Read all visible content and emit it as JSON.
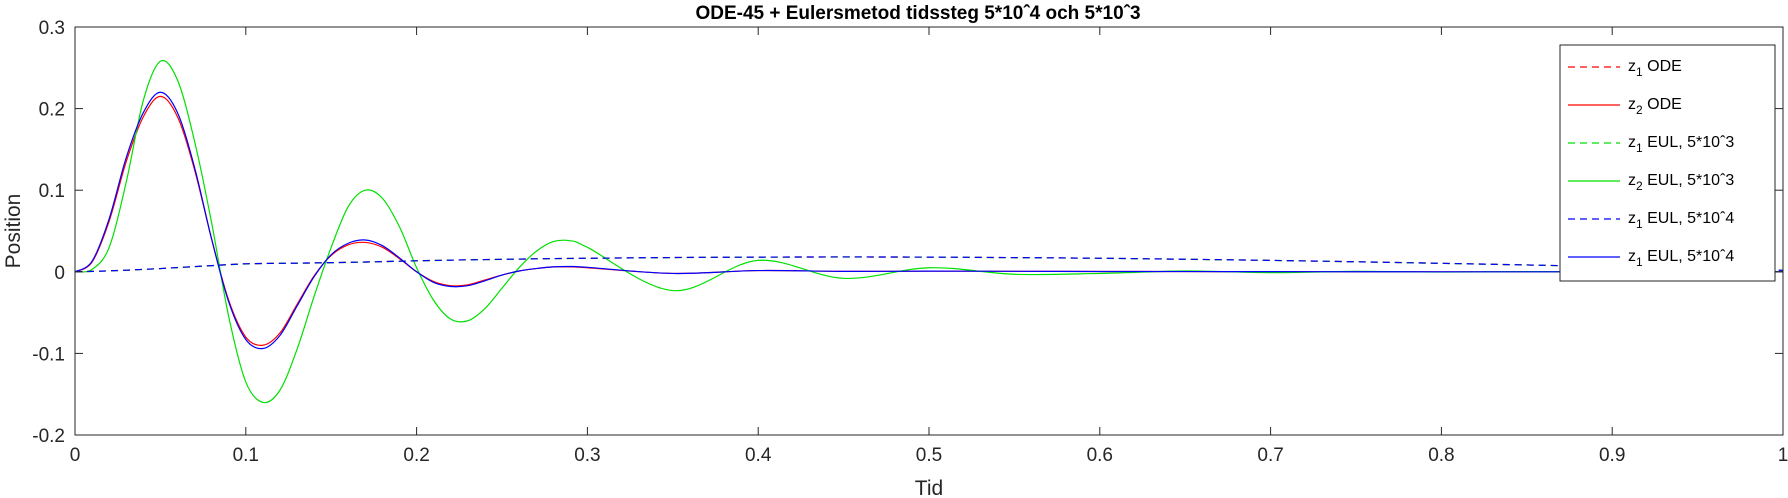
{
  "chart_data": {
    "type": "line",
    "title": "ODE-45 + Eulersmetod tidssteg 5*10ˆ4 och 5*10ˆ3",
    "xlabel": "Tid",
    "ylabel": "Position",
    "xlim": [
      0,
      1
    ],
    "ylim": [
      -0.2,
      0.3
    ],
    "xticks": [
      0,
      0.1,
      0.2,
      0.3,
      0.4,
      0.5,
      0.6,
      0.7,
      0.8,
      0.9,
      1
    ],
    "yticks": [
      -0.2,
      -0.1,
      0,
      0.1,
      0.2,
      0.3
    ],
    "xtick_labels": [
      "0",
      "0.1",
      "0.2",
      "0.3",
      "0.4",
      "0.5",
      "0.6",
      "0.7",
      "0.8",
      "0.9",
      "1"
    ],
    "ytick_labels": [
      "-0.2",
      "-0.1",
      "0",
      "0.1",
      "0.2",
      "0.3"
    ],
    "grid": false,
    "legend_position": "top-right",
    "x": [
      0,
      0.01,
      0.02,
      0.03,
      0.04,
      0.05,
      0.06,
      0.07,
      0.08,
      0.09,
      0.1,
      0.11,
      0.12,
      0.13,
      0.14,
      0.15,
      0.16,
      0.17,
      0.18,
      0.19,
      0.2,
      0.21,
      0.22,
      0.23,
      0.24,
      0.25,
      0.26,
      0.27,
      0.28,
      0.29,
      0.3,
      0.35,
      0.4,
      0.45,
      0.5,
      0.55,
      0.6,
      0.65,
      0.7,
      0.75,
      0.8,
      0.85,
      0.9,
      0.95,
      1
    ],
    "series": [
      {
        "name": "z",
        "sub": "1",
        "suffix": " ODE",
        "color": "#ff0000",
        "dash": true,
        "values": [
          0,
          0.0005,
          0.0012,
          0.002,
          0.003,
          0.004,
          0.0052,
          0.0064,
          0.0076,
          0.0088,
          0.0098,
          0.0102,
          0.0104,
          0.0106,
          0.0109,
          0.0112,
          0.0116,
          0.012,
          0.0125,
          0.013,
          0.0135,
          0.0139,
          0.0143,
          0.0147,
          0.015,
          0.0153,
          0.0156,
          0.0159,
          0.0162,
          0.0164,
          0.0166,
          0.0175,
          0.018,
          0.0182,
          0.018,
          0.0174,
          0.0166,
          0.0154,
          0.014,
          0.0123,
          0.0104,
          0.0084,
          0.0062,
          0.004,
          0.0018
        ]
      },
      {
        "name": "z",
        "sub": "2",
        "suffix": " ODE",
        "color": "#ff0000",
        "dash": false,
        "values": [
          0,
          0.012,
          0.062,
          0.135,
          0.19,
          0.215,
          0.19,
          0.125,
          0.04,
          -0.035,
          -0.08,
          -0.09,
          -0.075,
          -0.04,
          -0.005,
          0.02,
          0.033,
          0.036,
          0.03,
          0.016,
          0.0,
          -0.012,
          -0.017,
          -0.016,
          -0.01,
          -0.004,
          0.001,
          0.004,
          0.006,
          0.006,
          0.005,
          -0.002,
          0.0015,
          0.0005,
          0.0008,
          0.0006,
          0.0004,
          0.0003,
          0.0002,
          0.0001,
          0.0,
          0.0,
          0.0,
          0.0,
          0.0
        ]
      },
      {
        "name": "z",
        "sub": "1",
        "suffix": " EUL, 5*10ˆ3",
        "color": "#00e000",
        "dash": true,
        "values": [
          0,
          0.0004,
          0.0011,
          0.0019,
          0.0029,
          0.0039,
          0.005,
          0.0062,
          0.0074,
          0.0086,
          0.0096,
          0.0101,
          0.0103,
          0.0105,
          0.0108,
          0.0111,
          0.0115,
          0.0119,
          0.0124,
          0.0129,
          0.0134,
          0.0138,
          0.0142,
          0.0146,
          0.0149,
          0.0152,
          0.0155,
          0.0158,
          0.0161,
          0.0163,
          0.0165,
          0.0174,
          0.0179,
          0.0181,
          0.0179,
          0.0173,
          0.0165,
          0.0153,
          0.0139,
          0.0122,
          0.0103,
          0.0083,
          0.0061,
          0.0039,
          0.0017
        ]
      },
      {
        "name": "z",
        "sub": "2",
        "suffix": " EUL, 5*10ˆ3",
        "color": "#00e000",
        "dash": false,
        "values": [
          0,
          0.003,
          0.03,
          0.11,
          0.21,
          0.258,
          0.235,
          0.16,
          0.06,
          -0.055,
          -0.135,
          -0.16,
          -0.145,
          -0.095,
          -0.03,
          0.03,
          0.08,
          0.1,
          0.09,
          0.055,
          0.005,
          -0.035,
          -0.058,
          -0.06,
          -0.045,
          -0.02,
          0.005,
          0.025,
          0.037,
          0.038,
          0.03,
          -0.023,
          0.014,
          -0.008,
          0.005,
          -0.003,
          -0.002,
          0.001,
          -0.001,
          0.0005,
          -0.0003,
          0.0002,
          -0.0001,
          0.0001,
          0.0
        ]
      },
      {
        "name": "z",
        "sub": "1",
        "suffix": " EUL, 5*10ˆ4",
        "color": "#0000ff",
        "dash": true,
        "values": [
          0,
          0.0005,
          0.0012,
          0.002,
          0.003,
          0.004,
          0.0052,
          0.0064,
          0.0076,
          0.0088,
          0.0098,
          0.0102,
          0.0104,
          0.0106,
          0.0109,
          0.0112,
          0.0116,
          0.012,
          0.0125,
          0.013,
          0.0135,
          0.0139,
          0.0143,
          0.0147,
          0.015,
          0.0153,
          0.0156,
          0.0159,
          0.0162,
          0.0164,
          0.0166,
          0.0175,
          0.018,
          0.0182,
          0.018,
          0.0174,
          0.0166,
          0.0154,
          0.014,
          0.0123,
          0.0104,
          0.0084,
          0.0062,
          0.004,
          0.0018
        ]
      },
      {
        "name": "z",
        "sub": "1",
        "suffix": " EUL, 5*10ˆ4",
        "color": "#0000ff",
        "dash": false,
        "values": [
          0,
          0.013,
          0.065,
          0.14,
          0.195,
          0.22,
          0.195,
          0.128,
          0.04,
          -0.037,
          -0.083,
          -0.094,
          -0.078,
          -0.042,
          -0.006,
          0.021,
          0.035,
          0.039,
          0.032,
          0.017,
          0.0,
          -0.013,
          -0.018,
          -0.017,
          -0.011,
          -0.004,
          0.001,
          0.004,
          0.006,
          0.0065,
          0.0055,
          -0.002,
          0.0015,
          0.0005,
          0.0008,
          0.0006,
          0.0004,
          0.0003,
          0.0002,
          0.0001,
          0.0,
          0.0,
          0.0,
          0.0,
          0.0
        ]
      }
    ]
  }
}
